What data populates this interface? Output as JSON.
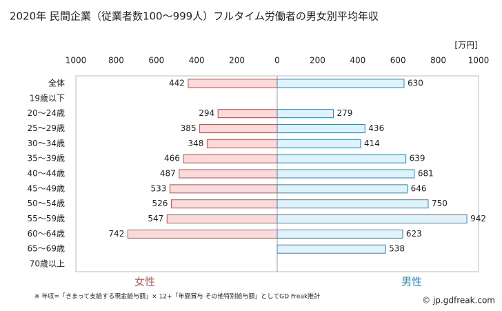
{
  "chart_data": {
    "type": "butterfly",
    "title": "2020年 民間企業（従業者数100〜999人）フルタイム労働者の男女別平均年収",
    "unit": "[万円]",
    "categories": [
      "全体",
      "19歳以下",
      "20〜24歳",
      "25〜29歳",
      "30〜34歳",
      "35〜39歳",
      "40〜44歳",
      "45〜49歳",
      "50〜54歳",
      "55〜59歳",
      "60〜64歳",
      "65〜69歳",
      "70歳以上"
    ],
    "series": [
      {
        "name": "女性",
        "color": "#c0504d",
        "fill": "#fadada",
        "values": [
          442,
          null,
          294,
          385,
          348,
          466,
          487,
          533,
          526,
          547,
          742,
          null,
          null
        ]
      },
      {
        "name": "男性",
        "color": "#2e86c1",
        "fill": "#def3fb",
        "values": [
          630,
          null,
          279,
          436,
          414,
          639,
          681,
          646,
          750,
          942,
          623,
          538,
          null
        ]
      }
    ],
    "xlim": [
      0,
      1000
    ],
    "xticks": [
      0,
      200,
      400,
      600,
      800,
      1000
    ],
    "note": "※ 年収=「きまって支給する現金給与額」× 12+「年間賞与 その他特別給与額」としてGD Freak推計",
    "source": "© jp.gdfreak.com"
  }
}
